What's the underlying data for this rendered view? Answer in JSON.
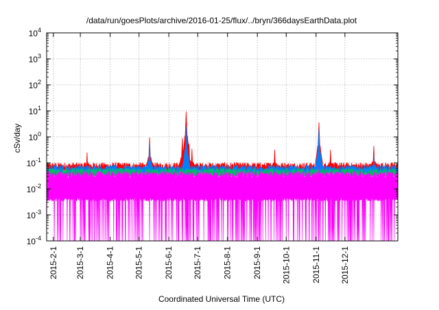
{
  "chart_data": {
    "type": "area",
    "title": "/data/run/goesPlots/archive/2016-01-25/flux/../bryn/366daysEarthData.plot",
    "xlabel": "Coordinated Universal Time (UTC)",
    "ylabel": "cSv/day",
    "yscale": "log",
    "ylim": [
      0.0001,
      10000
    ],
    "y_ticks": [
      {
        "value": 0.0001,
        "base": "10",
        "exp": "-4"
      },
      {
        "value": 0.001,
        "base": "10",
        "exp": "-3"
      },
      {
        "value": 0.01,
        "base": "10",
        "exp": "-2"
      },
      {
        "value": 0.1,
        "base": "10",
        "exp": "-1"
      },
      {
        "value": 1,
        "base": "10",
        "exp": "0"
      },
      {
        "value": 10,
        "base": "10",
        "exp": "1"
      },
      {
        "value": 100,
        "base": "10",
        "exp": "2"
      },
      {
        "value": 1000,
        "base": "10",
        "exp": "3"
      },
      {
        "value": 10000,
        "base": "10",
        "exp": "4"
      }
    ],
    "xlim": [
      "2015-01-25",
      "2016-01-25"
    ],
    "x_ticks": [
      "2015-2-1",
      "2015-3-1",
      "2015-4-1",
      "2015-5-1",
      "2015-6-1",
      "2015-7-1",
      "2015-8-1",
      "2015-9-1",
      "2015-10-1",
      "2015-11-1",
      "2015-12-1"
    ],
    "grid": true,
    "series_colors": [
      "#ff0000",
      "#0080ff",
      "#00c060",
      "#ff00ff"
    ],
    "series": [
      {
        "color": "#ff0000",
        "baseline": 0.075,
        "spikes": [
          {
            "date": "2015-03-08",
            "value": 0.25
          },
          {
            "date": "2015-05-12",
            "value": 0.95
          },
          {
            "date": "2015-06-15",
            "value": 0.9
          },
          {
            "date": "2015-06-19",
            "value": 9.5
          },
          {
            "date": "2015-06-22",
            "value": 0.55
          },
          {
            "date": "2015-06-25",
            "value": 0.35
          },
          {
            "date": "2015-09-19",
            "value": 0.32
          },
          {
            "date": "2015-11-04",
            "value": 3.6
          },
          {
            "date": "2015-11-16",
            "value": 0.32
          },
          {
            "date": "2015-12-31",
            "value": 0.45
          }
        ]
      },
      {
        "color": "#0080ff",
        "baseline": 0.06,
        "spikes": [
          {
            "date": "2015-05-12",
            "value": 0.6
          },
          {
            "date": "2015-06-19",
            "value": 2.5
          },
          {
            "date": "2015-11-04",
            "value": 2.0
          },
          {
            "date": "2015-12-31",
            "value": 0.2
          }
        ]
      },
      {
        "color": "#00c060",
        "baseline": 0.045,
        "spikes": []
      },
      {
        "color": "#ff00ff",
        "baseline": 0.035,
        "floor": 0.004,
        "spikes": [
          {
            "date": "2015-11-04",
            "value": 0.08
          }
        ]
      }
    ]
  }
}
